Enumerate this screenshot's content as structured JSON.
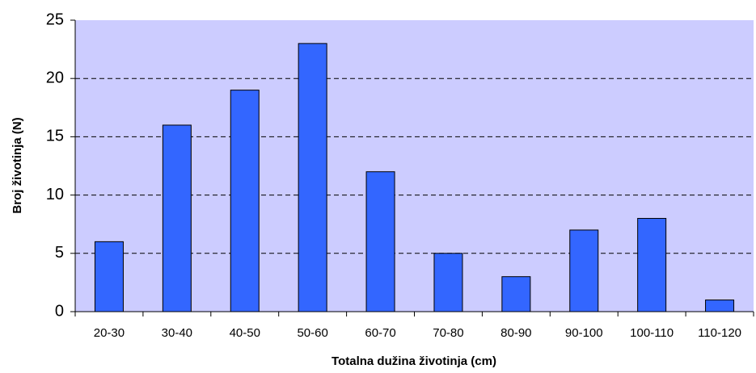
{
  "chart_data": {
    "type": "bar",
    "xlabel": "Totalna dužina životinja (cm)",
    "ylabel": "Broj životinja (N)",
    "categories": [
      "20-30",
      "30-40",
      "40-50",
      "50-60",
      "60-70",
      "70-80",
      "80-90",
      "90-100",
      "100-110",
      "110-120"
    ],
    "values": [
      6,
      16,
      19,
      23,
      12,
      5,
      3,
      7,
      8,
      1
    ],
    "color": "#3366ff",
    "ylim": [
      0,
      25
    ],
    "yticks": [
      0,
      5,
      10,
      15,
      20,
      25
    ],
    "grid": true
  }
}
